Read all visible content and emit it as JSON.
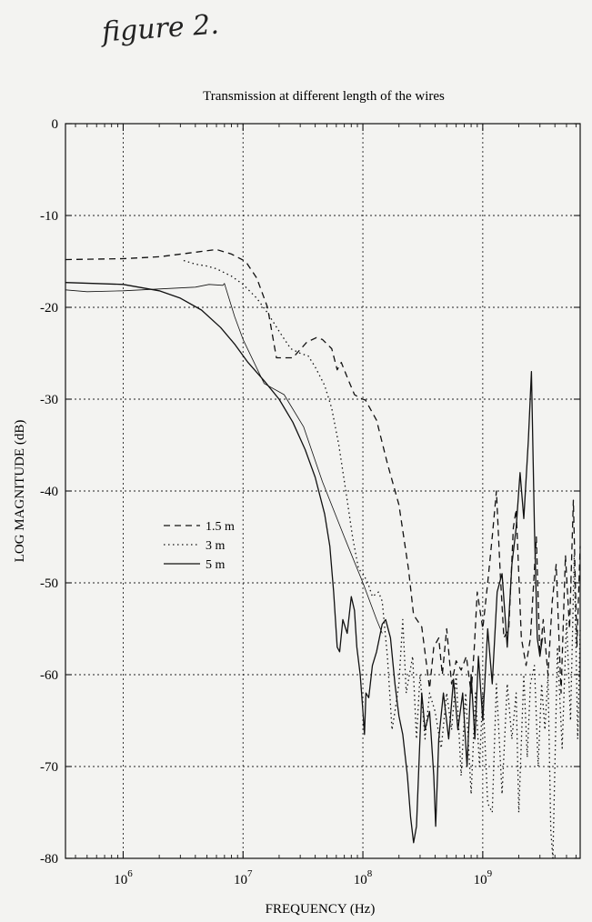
{
  "annotation": "figure 2.",
  "chart_data": {
    "type": "line",
    "title": "Transmission at different length of the wires",
    "xlabel": "FREQUENCY (Hz)",
    "ylabel": "LOG MAGNITUDE (dB)",
    "xscale": "log",
    "xlim": [
      330000.0,
      6500000000.0
    ],
    "ylim": [
      -80,
      0
    ],
    "grid": true,
    "legend_position": "center-left",
    "x_ticks": [
      {
        "value": 1000000.0,
        "base": "10",
        "exp": "6"
      },
      {
        "value": 10000000.0,
        "base": "10",
        "exp": "7"
      },
      {
        "value": 100000000.0,
        "base": "10",
        "exp": "8"
      },
      {
        "value": 1000000000.0,
        "base": "10",
        "exp": "9"
      }
    ],
    "y_ticks": [
      0,
      -10,
      -20,
      -30,
      -40,
      -50,
      -60,
      -70,
      -80
    ],
    "y_tick_labels": [
      "0",
      "-10",
      "-20",
      "-30",
      "-40",
      "-50",
      "-60",
      "-70",
      "-80"
    ],
    "series": [
      {
        "name": "1.5 m",
        "style": "dashed",
        "points": [
          [
            330000.0,
            -14.8
          ],
          [
            1000000.0,
            -14.7
          ],
          [
            2000000.0,
            -14.5
          ],
          [
            4000000.0,
            -14.0
          ],
          [
            6000000.0,
            -13.7
          ],
          [
            8000000.0,
            -14.2
          ],
          [
            10500000.0,
            -15.0
          ],
          [
            13000000.0,
            -16.8
          ],
          [
            16000000.0,
            -20.0
          ],
          [
            19000000.0,
            -25.5
          ],
          [
            26000000.0,
            -25.5
          ],
          [
            34000000.0,
            -23.8
          ],
          [
            41000000.0,
            -23.3
          ],
          [
            46000000.0,
            -23.5
          ],
          [
            55000000.0,
            -24.5
          ],
          [
            61000000.0,
            -26.8
          ],
          [
            66000000.0,
            -26.0
          ],
          [
            75000000.0,
            -27.8
          ],
          [
            85000000.0,
            -29.5
          ],
          [
            95000000.0,
            -29.9
          ],
          [
            105000000.0,
            -30.1
          ],
          [
            130000000.0,
            -32.3
          ],
          [
            160000000.0,
            -37.0
          ],
          [
            200000000.0,
            -41.5
          ],
          [
            240000000.0,
            -48.5
          ],
          [
            265000000.0,
            -53.5
          ],
          [
            310000000.0,
            -54.8
          ],
          [
            360000000.0,
            -61.5
          ],
          [
            390000000.0,
            -57.0
          ],
          [
            430000000.0,
            -56.0
          ],
          [
            460000000.0,
            -60.0
          ],
          [
            500000000.0,
            -55.0
          ],
          [
            550000000.0,
            -61.0
          ],
          [
            600000000.0,
            -58.5
          ],
          [
            660000000.0,
            -59.5
          ],
          [
            730000000.0,
            -58.0
          ],
          [
            800000000.0,
            -62.0
          ],
          [
            850000000.0,
            -57.0
          ],
          [
            900000000.0,
            -51.0
          ],
          [
            1000000000.0,
            -55.0
          ],
          [
            1100000000.0,
            -50.0
          ],
          [
            1200000000.0,
            -45.0
          ],
          [
            1300000000.0,
            -40.0
          ],
          [
            1400000000.0,
            -49.0
          ],
          [
            1500000000.0,
            -56.0
          ],
          [
            1650000000.0,
            -55.0
          ],
          [
            1800000000.0,
            -44.0
          ],
          [
            1900000000.0,
            -42.0
          ],
          [
            2100000000.0,
            -56.0
          ],
          [
            2300000000.0,
            -59.0
          ],
          [
            2500000000.0,
            -56.0
          ],
          [
            2800000000.0,
            -45.0
          ],
          [
            3000000000.0,
            -58.0
          ],
          [
            3200000000.0,
            -54.0
          ],
          [
            3500000000.0,
            -60.0
          ],
          [
            3800000000.0,
            -52.0
          ],
          [
            4100000000.0,
            -48.0
          ],
          [
            4500000000.0,
            -62.0
          ],
          [
            4900000000.0,
            -47.0
          ],
          [
            5300000000.0,
            -55.0
          ],
          [
            5700000000.0,
            -41.0
          ],
          [
            6100000000.0,
            -57.0
          ],
          [
            6500000000.0,
            -46.0
          ]
        ]
      },
      {
        "name": "3 m",
        "style": "dotted",
        "points": [
          [
            3200000.0,
            -14.9
          ],
          [
            4000000.0,
            -15.3
          ],
          [
            5000000.0,
            -15.5
          ],
          [
            6000000.0,
            -15.8
          ],
          [
            8000000.0,
            -16.6
          ],
          [
            10000000.0,
            -17.5
          ],
          [
            13000000.0,
            -19.0
          ],
          [
            16000000.0,
            -20.6
          ],
          [
            20000000.0,
            -22.6
          ],
          [
            25000000.0,
            -24.5
          ],
          [
            30000000.0,
            -25.0
          ],
          [
            35000000.0,
            -25.3
          ],
          [
            40000000.0,
            -26.5
          ],
          [
            48000000.0,
            -28.5
          ],
          [
            55000000.0,
            -31.0
          ],
          [
            63000000.0,
            -35.0
          ],
          [
            72000000.0,
            -40.0
          ],
          [
            82000000.0,
            -45.0
          ],
          [
            92000000.0,
            -48.5
          ],
          [
            100000000.0,
            -49.0
          ],
          [
            110000000.0,
            -50.0
          ],
          [
            120000000.0,
            -51.5
          ],
          [
            135000000.0,
            -51.0
          ],
          [
            145000000.0,
            -52.0
          ],
          [
            160000000.0,
            -58.0
          ],
          [
            175000000.0,
            -66.0
          ],
          [
            185000000.0,
            -64.0
          ],
          [
            200000000.0,
            -61.0
          ],
          [
            215000000.0,
            -54.0
          ],
          [
            230000000.0,
            -62.0
          ],
          [
            260000000.0,
            -58.0
          ],
          [
            280000000.0,
            -67.0
          ],
          [
            300000000.0,
            -60.0
          ],
          [
            330000000.0,
            -67.0
          ],
          [
            360000000.0,
            -62.0
          ],
          [
            400000000.0,
            -64.0
          ],
          [
            450000000.0,
            -68.0
          ],
          [
            500000000.0,
            -62.0
          ],
          [
            550000000.0,
            -66.0
          ],
          [
            600000000.0,
            -60.0
          ],
          [
            660000000.0,
            -71.0
          ],
          [
            720000000.0,
            -62.0
          ],
          [
            800000000.0,
            -73.0
          ],
          [
            870000000.0,
            -62.0
          ],
          [
            940000000.0,
            -70.0
          ],
          [
            1000000000.0,
            -62.0
          ],
          [
            1100000000.0,
            -74.0
          ],
          [
            1200000000.0,
            -75.0
          ],
          [
            1300000000.0,
            -61.0
          ],
          [
            1450000000.0,
            -73.0
          ],
          [
            1600000000.0,
            -61.0
          ],
          [
            1750000000.0,
            -67.0
          ],
          [
            1900000000.0,
            -62.0
          ],
          [
            2000000000.0,
            -75.0
          ],
          [
            2200000000.0,
            -60.0
          ],
          [
            2350000000.0,
            -69.0
          ],
          [
            2500000000.0,
            -61.0
          ],
          [
            2700000000.0,
            -59.0
          ],
          [
            2900000000.0,
            -70.0
          ],
          [
            3100000000.0,
            -61.0
          ],
          [
            3300000000.0,
            -66.0
          ],
          [
            3500000000.0,
            -60.0
          ],
          [
            3700000000.0,
            -77.0
          ],
          [
            3850000000.0,
            -80.0
          ],
          [
            4200000000.0,
            -57.0
          ],
          [
            4600000000.0,
            -68.0
          ],
          [
            5000000000.0,
            -54.0
          ],
          [
            5400000000.0,
            -65.0
          ],
          [
            5800000000.0,
            -47.0
          ],
          [
            6200000000.0,
            -67.0
          ],
          [
            6500000000.0,
            -55.0
          ]
        ]
      },
      {
        "name": "5 m",
        "style": "solid",
        "points": [
          [
            330000.0,
            -17.3
          ],
          [
            1000000.0,
            -17.5
          ],
          [
            2000000.0,
            -18.2
          ],
          [
            3000000.0,
            -19.0
          ],
          [
            4500000.0,
            -20.3
          ],
          [
            6500000.0,
            -22.2
          ],
          [
            8500000.0,
            -24.0
          ],
          [
            11000000.0,
            -26.0
          ],
          [
            15000000.0,
            -28.0
          ],
          [
            20000000.0,
            -30.0
          ],
          [
            26000000.0,
            -32.5
          ],
          [
            33000000.0,
            -35.5
          ],
          [
            40000000.0,
            -38.5
          ],
          [
            48000000.0,
            -42.5
          ],
          [
            53000000.0,
            -46.0
          ],
          [
            57000000.0,
            -51.0
          ],
          [
            61000000.0,
            -57.0
          ],
          [
            64000000.0,
            -57.5
          ],
          [
            68000000.0,
            -54.0
          ],
          [
            74000000.0,
            -55.5
          ],
          [
            80000000.0,
            -51.5
          ],
          [
            85000000.0,
            -53.0
          ],
          [
            89000000.0,
            -57.0
          ],
          [
            95000000.0,
            -60.0
          ],
          [
            100000000.0,
            -64.0
          ],
          [
            103000000.0,
            -66.5
          ],
          [
            106000000.0,
            -62.0
          ],
          [
            112000000.0,
            -62.5
          ],
          [
            120000000.0,
            -59.0
          ],
          [
            130000000.0,
            -57.5
          ],
          [
            145000000.0,
            -54.5
          ],
          [
            155000000.0,
            -54.0
          ],
          [
            170000000.0,
            -56.0
          ],
          [
            185000000.0,
            -61.0
          ],
          [
            200000000.0,
            -64.5
          ],
          [
            215000000.0,
            -66.5
          ],
          [
            235000000.0,
            -71.0
          ],
          [
            250000000.0,
            -75.5
          ],
          [
            265000000.0,
            -78.3
          ],
          [
            280000000.0,
            -76.5
          ],
          [
            295000000.0,
            -69.0
          ],
          [
            310000000.0,
            -62.0
          ],
          [
            330000000.0,
            -66.0
          ],
          [
            360000000.0,
            -64.0
          ],
          [
            390000000.0,
            -71.0
          ],
          [
            405000000.0,
            -76.5
          ],
          [
            430000000.0,
            -67.0
          ],
          [
            470000000.0,
            -62.0
          ],
          [
            520000000.0,
            -67.0
          ],
          [
            570000000.0,
            -60.5
          ],
          [
            620000000.0,
            -66.0
          ],
          [
            680000000.0,
            -62.0
          ],
          [
            740000000.0,
            -70.0
          ],
          [
            800000000.0,
            -60.0
          ],
          [
            860000000.0,
            -67.0
          ],
          [
            920000000.0,
            -58.0
          ],
          [
            1000000000.0,
            -65.0
          ],
          [
            1100000000.0,
            -55.0
          ],
          [
            1200000000.0,
            -61.0
          ],
          [
            1320000000.0,
            -51.0
          ],
          [
            1450000000.0,
            -49.0
          ],
          [
            1600000000.0,
            -57.0
          ],
          [
            1750000000.0,
            -48.0
          ],
          [
            1900000000.0,
            -44.0
          ],
          [
            2050000000.0,
            -38.0
          ],
          [
            2200000000.0,
            -43.0
          ],
          [
            2400000000.0,
            -34.5
          ],
          [
            2550000000.0,
            -27.0
          ],
          [
            2700000000.0,
            -44.0
          ],
          [
            2850000000.0,
            -56.0
          ],
          [
            3000000000.0,
            -58.0
          ],
          [
            3150000000.0,
            -56.0
          ]
        ]
      },
      {
        "name": "",
        "style": "thin",
        "points": [
          [
            330000.0,
            -18.1
          ],
          [
            500000.0,
            -18.3
          ],
          [
            1000000.0,
            -18.2
          ],
          [
            2000000.0,
            -18.0
          ],
          [
            4000000.0,
            -17.8
          ],
          [
            5200000.0,
            -17.5
          ],
          [
            6800000.0,
            -17.6
          ],
          [
            7000000.0,
            -17.4
          ],
          [
            8500000.0,
            -21.0
          ],
          [
            10000000.0,
            -23.5
          ],
          [
            15000000.0,
            -28.3
          ],
          [
            22000000.0,
            -29.5
          ],
          [
            32000000.0,
            -33.0
          ],
          [
            46000000.0,
            -39.0
          ],
          [
            70000000.0,
            -45.0
          ],
          [
            100000000.0,
            -50.0
          ],
          [
            130000000.0,
            -54.0
          ],
          [
            145000000.0,
            -55.5
          ]
        ]
      }
    ]
  }
}
